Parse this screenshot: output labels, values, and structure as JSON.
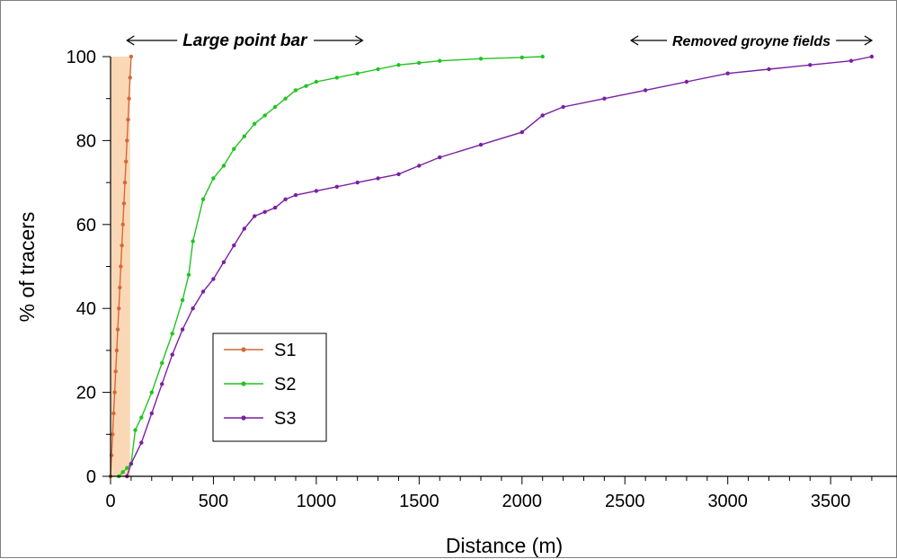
{
  "chart_data": {
    "type": "line",
    "xlabel": "Distance (m)",
    "ylabel": "% of tracers",
    "xlim": [
      0,
      3700
    ],
    "ylim": [
      0,
      100
    ],
    "x_ticks": [
      0,
      500,
      1000,
      1500,
      2000,
      2500,
      3000,
      3500
    ],
    "x_tick_labels": [
      "0",
      "500",
      "1000",
      "1500",
      "2000",
      "2500",
      "3000",
      "3500"
    ],
    "y_ticks": [
      0,
      20,
      40,
      60,
      80,
      100
    ],
    "y_tick_labels": [
      "0",
      "20",
      "40",
      "60",
      "80",
      "100"
    ],
    "grid": false,
    "legend_position": "center-left",
    "shaded_band": {
      "x_start": 0,
      "x_end": 95,
      "y_top": 100,
      "color": "#fbd8b5"
    },
    "annotations": [
      {
        "text": "Large point bar",
        "x_from": 80,
        "x_to": 1225
      },
      {
        "text": "Removed groyne fields",
        "x_from": 2530,
        "x_to": 3700
      }
    ],
    "series": [
      {
        "name": "S1",
        "color": "#d4693a",
        "x": [
          0,
          5,
          10,
          15,
          20,
          25,
          30,
          35,
          40,
          45,
          50,
          55,
          60,
          65,
          70,
          75,
          80,
          85,
          90,
          95,
          100
        ],
        "y": [
          0,
          5,
          10,
          15,
          20,
          25,
          30,
          35,
          40,
          45,
          50,
          55,
          60,
          65,
          70,
          75,
          80,
          85,
          90,
          95,
          100
        ]
      },
      {
        "name": "S2",
        "color": "#22c322",
        "x": [
          40,
          60,
          80,
          100,
          120,
          150,
          200,
          250,
          300,
          350,
          380,
          400,
          450,
          500,
          550,
          600,
          650,
          700,
          750,
          800,
          850,
          900,
          950,
          1000,
          1100,
          1200,
          1300,
          1400,
          1500,
          1600,
          1800,
          2000,
          2100
        ],
        "y": [
          0,
          1,
          2,
          3,
          11,
          14,
          20,
          27,
          34,
          42,
          48,
          56,
          66,
          71,
          74,
          78,
          81,
          84,
          86,
          88,
          90,
          92,
          93,
          94,
          95,
          96,
          97,
          98,
          98.5,
          99,
          99.5,
          99.8,
          100
        ]
      },
      {
        "name": "S3",
        "color": "#7b1fa2",
        "x": [
          80,
          100,
          150,
          200,
          250,
          300,
          350,
          400,
          450,
          500,
          550,
          600,
          650,
          700,
          750,
          800,
          850,
          900,
          1000,
          1100,
          1200,
          1300,
          1400,
          1500,
          1600,
          1800,
          2000,
          2100,
          2200,
          2400,
          2600,
          2800,
          3000,
          3200,
          3400,
          3600,
          3700
        ],
        "y": [
          0,
          3,
          8,
          15,
          22,
          29,
          35,
          40,
          44,
          47,
          51,
          55,
          59,
          62,
          63,
          64,
          66,
          67,
          68,
          69,
          70,
          71,
          72,
          74,
          76,
          79,
          82,
          86,
          88,
          90,
          92,
          94,
          96,
          97,
          98,
          99,
          100
        ]
      }
    ]
  }
}
